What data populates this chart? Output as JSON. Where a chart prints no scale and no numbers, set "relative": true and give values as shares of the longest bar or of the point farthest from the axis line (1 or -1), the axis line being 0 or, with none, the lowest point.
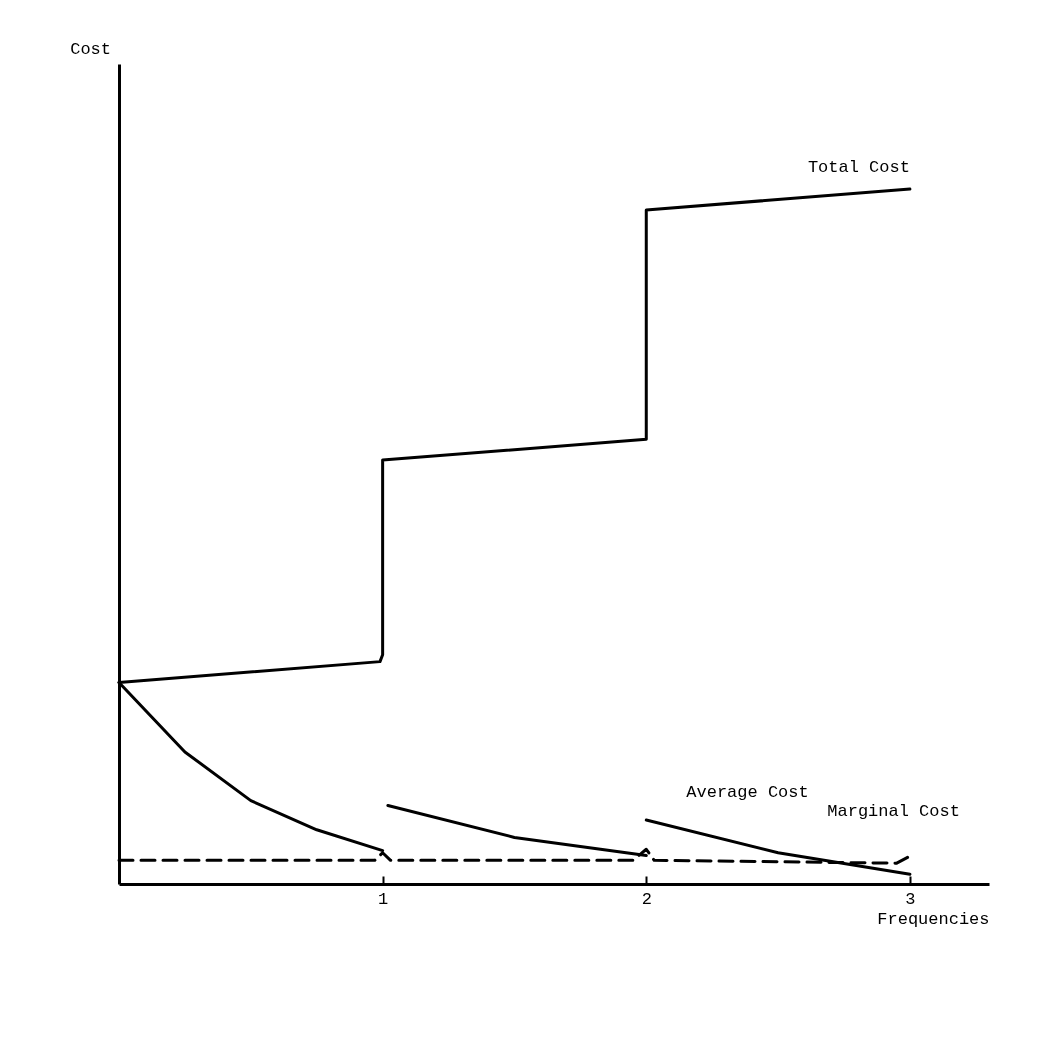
{
  "chart_data": {
    "type": "line",
    "xlabel": "Frequencies",
    "annotations": [
      "Cost"
    ],
    "relative": true,
    "xlim": [
      0,
      3.3
    ],
    "xticks": [
      1,
      2,
      3
    ],
    "grid": false,
    "legend": false,
    "marker": "none",
    "series": [
      {
        "name": "Total Cost",
        "color": "#000000",
        "line_style": "solid",
        "x": [
          0,
          0.99,
          1,
          1,
          2,
          2,
          3
        ],
        "values": [
          0.29,
          0.32,
          0.33,
          0.61,
          0.64,
          0.97,
          1
        ]
      },
      {
        "name": "Average Cost",
        "color": "#000000",
        "line_style": "solid",
        "x": [
          0,
          0.25,
          0.5,
          0.75,
          1,
          null,
          1.02,
          1.5,
          2,
          null,
          2,
          2.5,
          3
        ],
        "values": [
          0.29,
          0.19,
          0.12,
          0.078,
          0.048,
          null,
          0.113,
          0.067,
          0.041,
          null,
          0.092,
          0.045,
          0.014
        ]
      },
      {
        "name": "Marginal Cost",
        "color": "#000000",
        "line_style": "dashed",
        "x": [
          0,
          0.97,
          1,
          1.03,
          1.95,
          2,
          2.03,
          2.95,
          3
        ],
        "values": [
          0.034,
          0.034,
          0.045,
          0.034,
          0.034,
          0.05,
          0.034,
          0.03,
          0.04
        ]
      }
    ]
  }
}
